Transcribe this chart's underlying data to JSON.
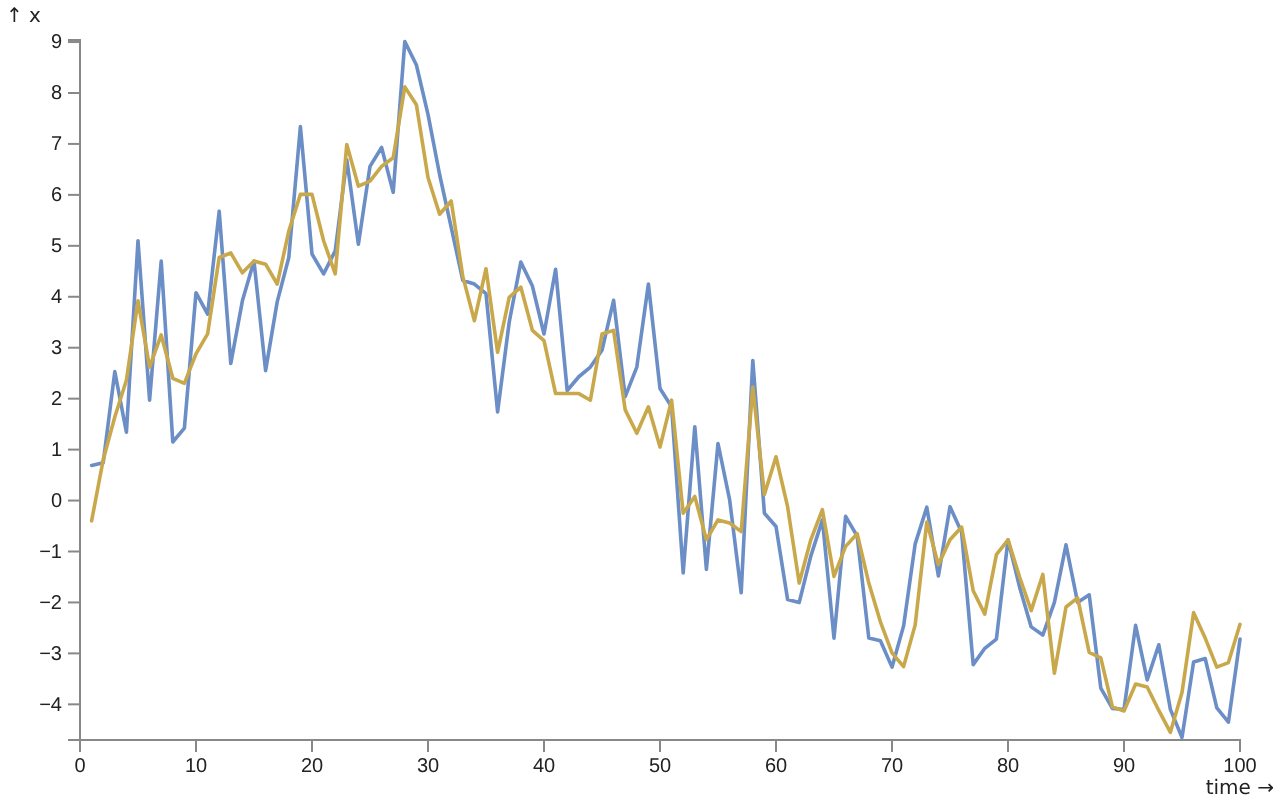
{
  "chart_data": {
    "type": "line",
    "xlabel": "time →",
    "ylabel": "↑ x",
    "x": [
      1,
      2,
      3,
      4,
      5,
      6,
      7,
      8,
      9,
      10,
      11,
      12,
      13,
      14,
      15,
      16,
      17,
      18,
      19,
      20,
      21,
      22,
      23,
      24,
      25,
      26,
      27,
      28,
      29,
      30,
      31,
      32,
      33,
      34,
      35,
      36,
      37,
      38,
      39,
      40,
      41,
      42,
      43,
      44,
      45,
      46,
      47,
      48,
      49,
      50,
      51,
      52,
      53,
      54,
      55,
      56,
      57,
      58,
      59,
      60,
      61,
      62,
      63,
      64,
      65,
      66,
      67,
      68,
      69,
      70,
      71,
      72,
      73,
      74,
      75,
      76,
      77,
      78,
      79,
      80,
      81,
      82,
      83,
      84,
      85,
      86,
      87,
      88,
      89,
      90,
      91,
      92,
      93,
      94,
      95,
      96,
      97,
      98,
      99,
      100
    ],
    "xlim": [
      0,
      100
    ],
    "xticks": [
      0,
      10,
      20,
      30,
      40,
      50,
      60,
      70,
      80,
      90,
      100
    ],
    "ylim": [
      -4.7,
      9.04
    ],
    "yticks": [
      -4,
      -3,
      -2,
      -1,
      0,
      1,
      2,
      3,
      4,
      5,
      6,
      7,
      8,
      9
    ],
    "series": [
      {
        "color": "#6b8ec6",
        "values": [
          0.69,
          0.74,
          2.53,
          1.34,
          5.1,
          1.97,
          4.7,
          1.15,
          1.42,
          4.08,
          3.66,
          5.68,
          2.69,
          3.92,
          4.7,
          2.55,
          3.9,
          4.77,
          7.34,
          4.84,
          4.45,
          4.9,
          6.69,
          5.03,
          6.56,
          6.93,
          6.05,
          9.01,
          8.55,
          7.58,
          6.4,
          5.36,
          4.32,
          4.25,
          4.06,
          1.74,
          3.5,
          4.68,
          4.21,
          3.27,
          4.54,
          2.16,
          2.43,
          2.62,
          2.95,
          3.93,
          2.04,
          2.62,
          4.25,
          2.2,
          1.84,
          -1.42,
          1.45,
          -1.35,
          1.12,
          0.02,
          -1.81,
          2.75,
          -0.25,
          -0.51,
          -1.94,
          -2.0,
          -1.09,
          -0.38,
          -2.7,
          -0.31,
          -0.7,
          -2.7,
          -2.75,
          -3.27,
          -2.46,
          -0.85,
          -0.13,
          -1.48,
          -0.12,
          -0.62,
          -3.22,
          -2.9,
          -2.72,
          -0.77,
          -1.7,
          -2.48,
          -2.64,
          -2.0,
          -0.87,
          -2.0,
          -1.85,
          -3.68,
          -4.08,
          -4.1,
          -2.45,
          -3.52,
          -2.83,
          -4.1,
          -4.65,
          -3.17,
          -3.1,
          -4.07,
          -4.35,
          -2.72
        ]
      },
      {
        "color": "#c9a84c",
        "values": [
          -0.4,
          0.8,
          1.64,
          2.36,
          3.92,
          2.62,
          3.25,
          2.4,
          2.3,
          2.88,
          3.27,
          4.77,
          4.86,
          4.47,
          4.7,
          4.64,
          4.25,
          5.29,
          6.01,
          6.01,
          5.1,
          4.45,
          6.99,
          6.17,
          6.27,
          6.56,
          6.73,
          8.12,
          7.77,
          6.34,
          5.62,
          5.88,
          4.4,
          3.53,
          4.55,
          2.91,
          3.99,
          4.19,
          3.34,
          3.14,
          2.1,
          2.1,
          2.1,
          1.97,
          3.27,
          3.34,
          1.78,
          1.32,
          1.84,
          1.05,
          1.97,
          -0.25,
          0.08,
          -0.77,
          -0.38,
          -0.44,
          -0.61,
          2.23,
          0.12,
          0.86,
          -0.12,
          -1.62,
          -0.77,
          -0.18,
          -1.49,
          -0.9,
          -0.65,
          -1.62,
          -2.38,
          -2.99,
          -3.26,
          -2.44,
          -0.42,
          -1.26,
          -0.77,
          -0.52,
          -1.77,
          -2.23,
          -1.06,
          -0.77,
          -1.5,
          -2.16,
          -1.45,
          -3.39,
          -2.09,
          -1.91,
          -2.98,
          -3.09,
          -4.05,
          -4.13,
          -3.6,
          -3.66,
          -4.12,
          -4.55,
          -3.77,
          -2.2,
          -2.7,
          -3.27,
          -3.18,
          -2.43
        ]
      }
    ]
  }
}
